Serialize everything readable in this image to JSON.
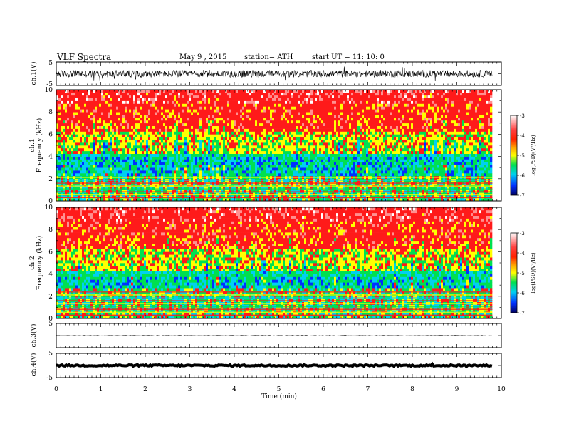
{
  "header": {
    "title": "VLF  Spectra",
    "date": "May 9  , 2015",
    "station": "station= ATH",
    "start": "start  UT  =    11: 10: 0"
  },
  "chart_data": [
    {
      "id": "ch1-waveform",
      "type": "line",
      "ylabel": "ch.1(V)",
      "ylim": [
        -5,
        5
      ],
      "ytick_labels": [
        "5",
        "-5"
      ],
      "xlim": [
        0,
        10
      ],
      "trace_mean": 0,
      "trace_amplitude_v": 1.5,
      "data_end_min": 9.8
    },
    {
      "id": "ch1-spectrogram",
      "type": "heatmap",
      "ylabel": "ch.1\nFrequency  (kHz)",
      "ylabel_channel": "ch.1",
      "ylabel_freq": "Frequency  (kHz)",
      "ylim": [
        0,
        10
      ],
      "ytick_labels": [
        "0",
        "2",
        "4",
        "6",
        "8",
        "10"
      ],
      "xlim": [
        0,
        10
      ],
      "data_end_min": 9.8,
      "colorbar": {
        "label": "log(PSD)(V²/Hz)",
        "range": [
          -7,
          -3
        ],
        "tick_labels": [
          "-3",
          "-4",
          "-5",
          "-6",
          "-7"
        ]
      },
      "band_structure_khz": {
        "red_above": 6.0,
        "yellow_above": 4.2,
        "green_above": 2.3,
        "cyan_band": [
          2.0,
          4.0
        ],
        "horizontal_lines_below": 2.3
      }
    },
    {
      "id": "ch2-spectrogram",
      "type": "heatmap",
      "ylabel": "ch.2\nFrequency  (kHz)",
      "ylabel_channel": "ch.2",
      "ylabel_freq": "Frequency  (kHz)",
      "ylim": [
        0,
        10
      ],
      "ytick_labels": [
        "0",
        "2",
        "4",
        "6",
        "8",
        "10"
      ],
      "xlim": [
        0,
        10
      ],
      "data_end_min": 9.8,
      "colorbar": {
        "label": "log(PSD)(V²/Hz)",
        "range": [
          -7,
          -3
        ],
        "tick_labels": [
          "-3",
          "-4",
          "-5",
          "-6",
          "-7"
        ]
      },
      "band_structure_khz": {
        "red_above": 6.0,
        "yellow_above": 4.0,
        "green_above": 2.5,
        "cyan_band": [
          2.5,
          3.6
        ],
        "horizontal_lines_below": 2.5
      }
    },
    {
      "id": "ch3-waveform",
      "type": "line",
      "ylabel": "ch.3(V)",
      "ylim": [
        -5,
        5
      ],
      "ytick_labels": [
        "5"
      ],
      "xlim": [
        0,
        10
      ],
      "trace_mean": 0,
      "trace_amplitude_v": 0.1,
      "data_end_min": 9.8
    },
    {
      "id": "ch4-waveform",
      "type": "line",
      "ylabel": "ch.4(V)",
      "ylim": [
        -5,
        5
      ],
      "ytick_labels": [
        "5",
        "-5"
      ],
      "xlim": [
        0,
        10
      ],
      "trace_mean": 0,
      "trace_amplitude_v": 0.3,
      "data_end_min": 9.8
    }
  ],
  "x_axis": {
    "label": "Time  (min)",
    "range": [
      0,
      10
    ],
    "tick_labels": [
      "0",
      "1",
      "2",
      "3",
      "4",
      "5",
      "6",
      "7",
      "8",
      "9",
      "10"
    ]
  },
  "colors": {
    "white": "#ffffff",
    "pink": "#ff9090",
    "red": "#ff1a1a",
    "yellow": "#ffff00",
    "green": "#00e050",
    "cyan": "#00d0f0",
    "blue": "#0030ff",
    "navy": "#000080",
    "trace": "#000000"
  }
}
